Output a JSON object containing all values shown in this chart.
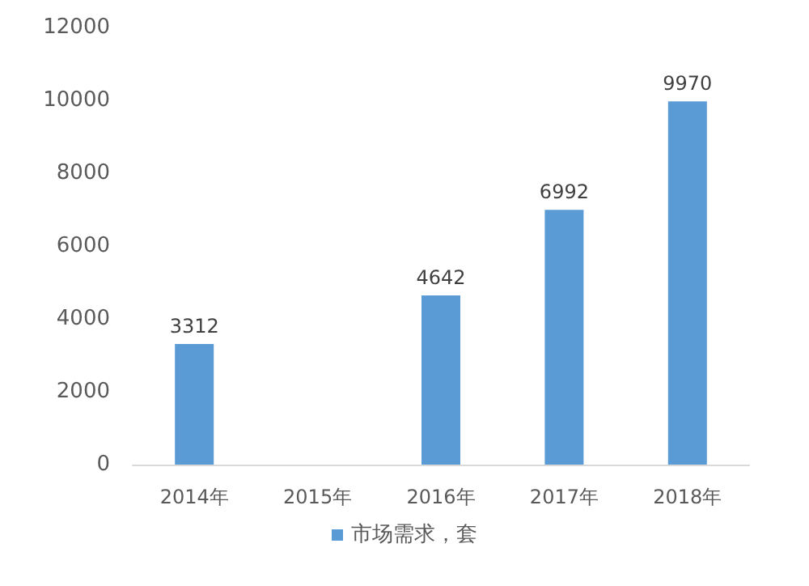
{
  "chart_data": {
    "type": "bar",
    "categories": [
      "2014年",
      "2015年",
      "2016年",
      "2017年",
      "2018年"
    ],
    "series": [
      {
        "name": "市场需求，套",
        "color": "#5b9bd5",
        "values": [
          3312,
          null,
          4642,
          6992,
          9970
        ]
      }
    ],
    "ylim": [
      0,
      12000
    ],
    "yticks": [
      0,
      2000,
      4000,
      6000,
      8000,
      10000,
      12000
    ],
    "grid": false,
    "legend": "bottom",
    "data_labels": true
  }
}
